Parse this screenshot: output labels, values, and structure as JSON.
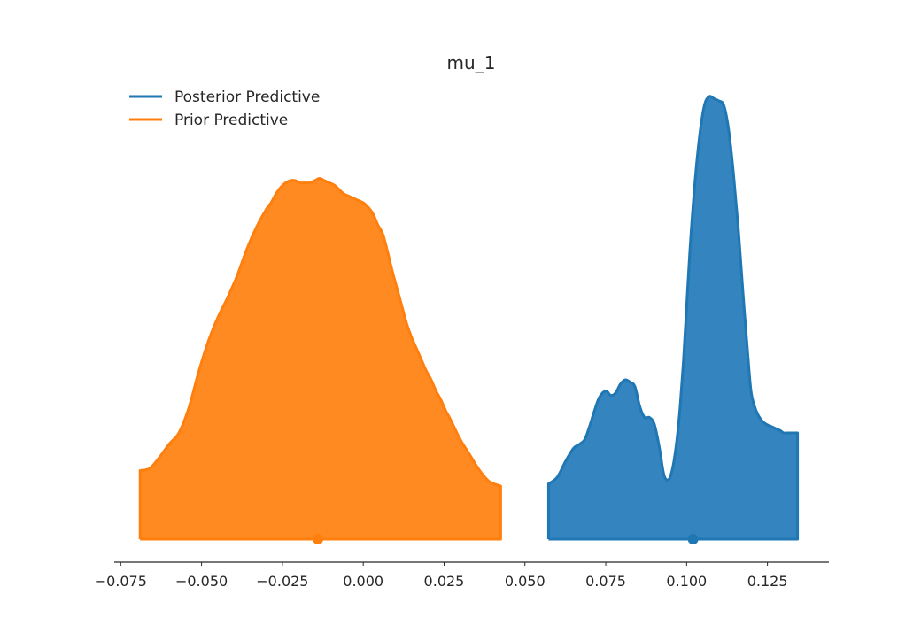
{
  "chart_data": {
    "type": "area",
    "title": "mu_1",
    "xlabel": "",
    "ylabel": "",
    "xlim": [
      -0.077,
      0.144
    ],
    "x_ticks": [
      -0.075,
      -0.05,
      -0.025,
      0.0,
      0.025,
      0.05,
      0.075,
      0.1,
      0.125
    ],
    "x_tick_labels": [
      "−0.075",
      "−0.050",
      "−0.025",
      "0.000",
      "0.025",
      "0.050",
      "0.075",
      "0.100",
      "0.125"
    ],
    "y_axis_visible": false,
    "grid": false,
    "legend_position": "top-left",
    "series": [
      {
        "name": "Posterior Predictive",
        "color": "#1f77b4",
        "fill_color": "#3484bf",
        "mean_marker_x": 0.102,
        "x": [
          0.0573,
          0.06,
          0.0625,
          0.065,
          0.067,
          0.0685,
          0.07,
          0.0715,
          0.073,
          0.075,
          0.0765,
          0.078,
          0.0795,
          0.081,
          0.0825,
          0.084,
          0.0855,
          0.087,
          0.0885,
          0.09,
          0.0915,
          0.093,
          0.0945,
          0.0958,
          0.097,
          0.098,
          0.099,
          0.1,
          0.101,
          0.1025,
          0.104,
          0.1055,
          0.107,
          0.1085,
          0.11,
          0.1115,
          0.113,
          0.1145,
          0.116,
          0.1175,
          0.119,
          0.12,
          0.1215,
          0.123,
          0.1245,
          0.126,
          0.1275,
          0.129,
          0.13,
          0.131,
          0.132,
          0.1333,
          0.1343
        ],
        "y": [
          0.25,
          0.28,
          0.35,
          0.41,
          0.43,
          0.45,
          0.51,
          0.58,
          0.64,
          0.67,
          0.65,
          0.66,
          0.7,
          0.72,
          0.71,
          0.69,
          0.6,
          0.55,
          0.55,
          0.52,
          0.42,
          0.29,
          0.27,
          0.33,
          0.45,
          0.6,
          0.8,
          1.05,
          1.3,
          1.6,
          1.82,
          1.96,
          2.0,
          1.99,
          1.98,
          1.96,
          1.85,
          1.65,
          1.4,
          1.1,
          0.82,
          0.66,
          0.58,
          0.54,
          0.52,
          0.51,
          0.5,
          0.49,
          0.48,
          0.48,
          0.48,
          0.48,
          0.48
        ]
      },
      {
        "name": "Prior Predictive",
        "color": "#ff7f0e",
        "fill_color": "#ff8a22",
        "mean_marker_x": -0.014,
        "x": [
          -0.069,
          -0.066,
          -0.063,
          -0.06,
          -0.057,
          -0.054,
          -0.051,
          -0.048,
          -0.045,
          -0.042,
          -0.039,
          -0.036,
          -0.033,
          -0.03,
          -0.0285,
          -0.027,
          -0.0255,
          -0.024,
          -0.0225,
          -0.021,
          -0.0195,
          -0.018,
          -0.0165,
          -0.015,
          -0.0135,
          -0.012,
          -0.0105,
          -0.009,
          -0.0075,
          -0.006,
          -0.0045,
          -0.003,
          -0.0015,
          0.0,
          0.0015,
          0.003,
          0.0045,
          0.006,
          0.0075,
          0.009,
          0.0105,
          0.012,
          0.0135,
          0.015,
          0.0165,
          0.018,
          0.0195,
          0.021,
          0.0225,
          0.024,
          0.0255,
          0.027,
          0.03,
          0.033,
          0.036,
          0.039,
          0.0425
        ],
        "y": [
          0.31,
          0.32,
          0.37,
          0.43,
          0.48,
          0.59,
          0.75,
          0.89,
          1.0,
          1.09,
          1.19,
          1.31,
          1.41,
          1.49,
          1.52,
          1.56,
          1.59,
          1.61,
          1.62,
          1.62,
          1.61,
          1.61,
          1.61,
          1.62,
          1.63,
          1.62,
          1.61,
          1.6,
          1.58,
          1.56,
          1.55,
          1.54,
          1.53,
          1.52,
          1.5,
          1.47,
          1.42,
          1.38,
          1.3,
          1.21,
          1.13,
          1.05,
          0.97,
          0.91,
          0.86,
          0.81,
          0.76,
          0.72,
          0.67,
          0.63,
          0.58,
          0.54,
          0.45,
          0.38,
          0.31,
          0.26,
          0.24
        ]
      }
    ]
  }
}
